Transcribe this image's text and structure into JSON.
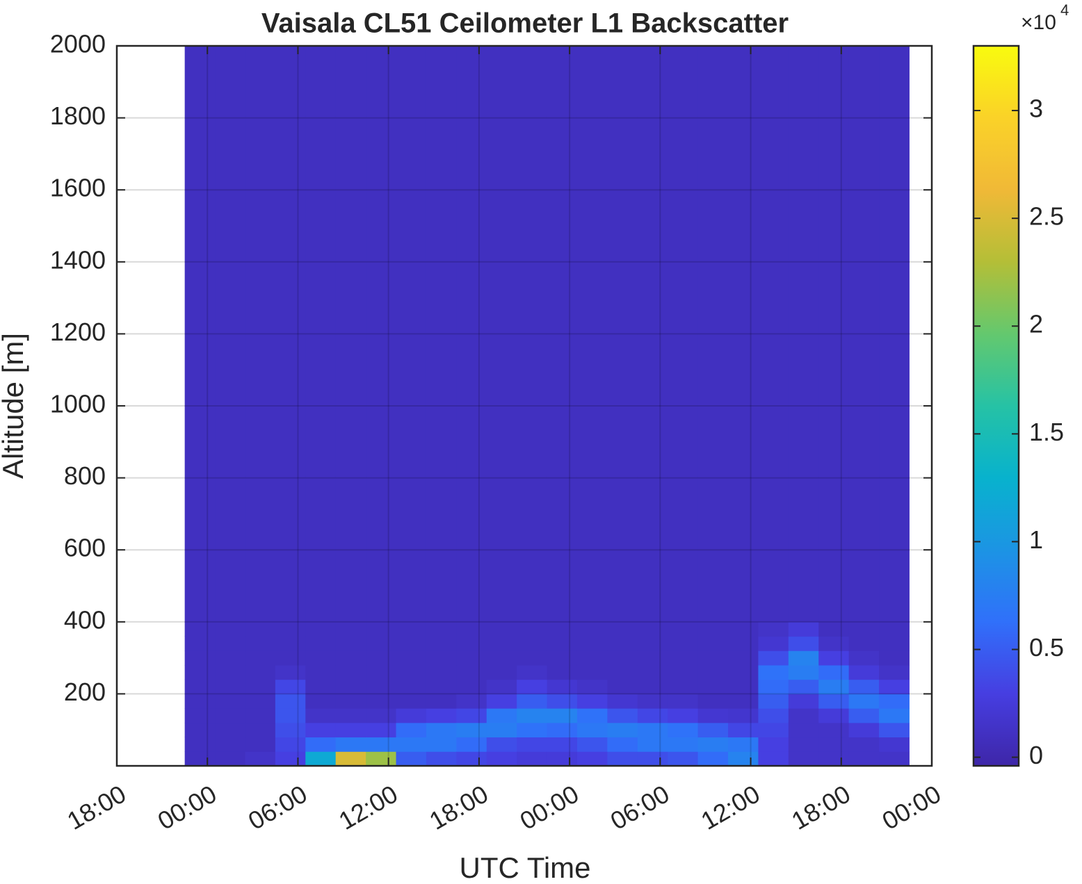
{
  "chart_data": {
    "type": "heatmap",
    "title": "Vaisala CL51 Ceilometer L1 Backscatter",
    "x_label": "UTC Time",
    "y_label": "Altitude [m]",
    "colormap": "parula",
    "grid": true,
    "xlim": [
      0,
      54
    ],
    "ylim": [
      0,
      2000
    ],
    "clim": [
      -400,
      33000
    ],
    "xticks": [
      {
        "value": 0,
        "label": "18:00"
      },
      {
        "value": 6,
        "label": "00:00"
      },
      {
        "value": 12,
        "label": "06:00"
      },
      {
        "value": 18,
        "label": "12:00"
      },
      {
        "value": 24,
        "label": "18:00"
      },
      {
        "value": 30,
        "label": "00:00"
      },
      {
        "value": 36,
        "label": "06:00"
      },
      {
        "value": 42,
        "label": "12:00"
      },
      {
        "value": 48,
        "label": "18:00"
      },
      {
        "value": 54,
        "label": "00:00"
      }
    ],
    "yticks": [
      200,
      400,
      600,
      800,
      1000,
      1200,
      1400,
      1600,
      1800,
      2000
    ],
    "cticks": [
      0,
      {
        "value": 5000,
        "label": "0.5"
      },
      {
        "value": 10000,
        "label": "1"
      },
      {
        "value": 15000,
        "label": "1.5"
      },
      {
        "value": 20000,
        "label": "2"
      },
      {
        "value": 25000,
        "label": "2.5"
      },
      {
        "value": 30000,
        "label": "3"
      }
    ],
    "colorbar_multiplier": "×10",
    "colorbar_exponent": "4",
    "x_edges": [
      4.5,
      6.5,
      8.5,
      10.5,
      12.5,
      14.5,
      16.5,
      18.5,
      20.5,
      22.5,
      24.5,
      26.5,
      28.5,
      30.5,
      32.5,
      34.5,
      36.5,
      38.5,
      40.5,
      42.5,
      44.5,
      46.5,
      48.5,
      50.5,
      52.5
    ],
    "y_edges": [
      0,
      40,
      80,
      120,
      160,
      200,
      240,
      280,
      320,
      360,
      400,
      2000
    ],
    "z": [
      [
        1000,
        1000,
        1000,
        1000,
        1000,
        1000,
        1000,
        1000,
        1000,
        1000,
        1000
      ],
      [
        1000,
        1000,
        1000,
        1000,
        1000,
        1000,
        1000,
        1000,
        1000,
        1000,
        1000
      ],
      [
        1500,
        1000,
        1000,
        1000,
        1000,
        1000,
        1000,
        1000,
        1000,
        1000,
        1000
      ],
      [
        3000,
        3500,
        4000,
        4500,
        4500,
        3500,
        1500,
        1000,
        1000,
        1000,
        1000
      ],
      [
        12000,
        6000,
        3000,
        1500,
        1000,
        1000,
        1000,
        1000,
        1000,
        1000,
        1000
      ],
      [
        25000,
        7000,
        3000,
        1500,
        1000,
        1000,
        1000,
        1000,
        1000,
        1000,
        1000
      ],
      [
        22000,
        7000,
        3000,
        1500,
        1000,
        1000,
        1000,
        1000,
        1000,
        1000,
        1000
      ],
      [
        5000,
        7000,
        6000,
        2500,
        1000,
        1000,
        1000,
        1000,
        1000,
        1000,
        1000
      ],
      [
        4000,
        7000,
        7000,
        3000,
        1000,
        1000,
        1000,
        1000,
        1000,
        1000,
        1000
      ],
      [
        3500,
        6000,
        7500,
        3500,
        1500,
        1000,
        1000,
        1000,
        1000,
        1000,
        1000
      ],
      [
        3000,
        4000,
        7500,
        7000,
        3000,
        1500,
        1000,
        1000,
        1000,
        1000,
        1000
      ],
      [
        2500,
        3500,
        6500,
        8000,
        5000,
        3000,
        1500,
        1000,
        1000,
        1000,
        1000
      ],
      [
        2500,
        3500,
        6000,
        8000,
        4000,
        2000,
        1000,
        1000,
        1000,
        1000,
        1000
      ],
      [
        3000,
        4500,
        7000,
        6500,
        3000,
        1500,
        1000,
        1000,
        1000,
        1000,
        1000
      ],
      [
        4000,
        6000,
        7500,
        4500,
        2000,
        1000,
        1000,
        1000,
        1000,
        1000,
        1000
      ],
      [
        4000,
        7000,
        7000,
        3500,
        1500,
        1000,
        1000,
        1000,
        1000,
        1000,
        1000
      ],
      [
        4500,
        7000,
        6500,
        3000,
        1500,
        1000,
        1000,
        1000,
        1000,
        1000,
        1000
      ],
      [
        6000,
        7500,
        5000,
        2000,
        1000,
        1000,
        1000,
        1000,
        1000,
        1000,
        1000
      ],
      [
        8000,
        7000,
        3500,
        1800,
        1000,
        1000,
        1000,
        1000,
        1000,
        1000,
        1000
      ],
      [
        3000,
        3000,
        3500,
        4000,
        5000,
        6000,
        6500,
        4000,
        2000,
        1500,
        1000
      ],
      [
        1500,
        1500,
        1500,
        1500,
        2500,
        5000,
        7500,
        8000,
        4000,
        2500,
        1000
      ],
      [
        1500,
        1500,
        1500,
        2500,
        5000,
        7500,
        6000,
        3000,
        1500,
        1000,
        1000
      ],
      [
        1500,
        1500,
        2500,
        5000,
        7000,
        5000,
        2500,
        1500,
        1000,
        1000,
        1000
      ],
      [
        1500,
        2000,
        4500,
        7000,
        6000,
        3000,
        1500,
        1000,
        1000,
        1000,
        1000
      ]
    ]
  }
}
